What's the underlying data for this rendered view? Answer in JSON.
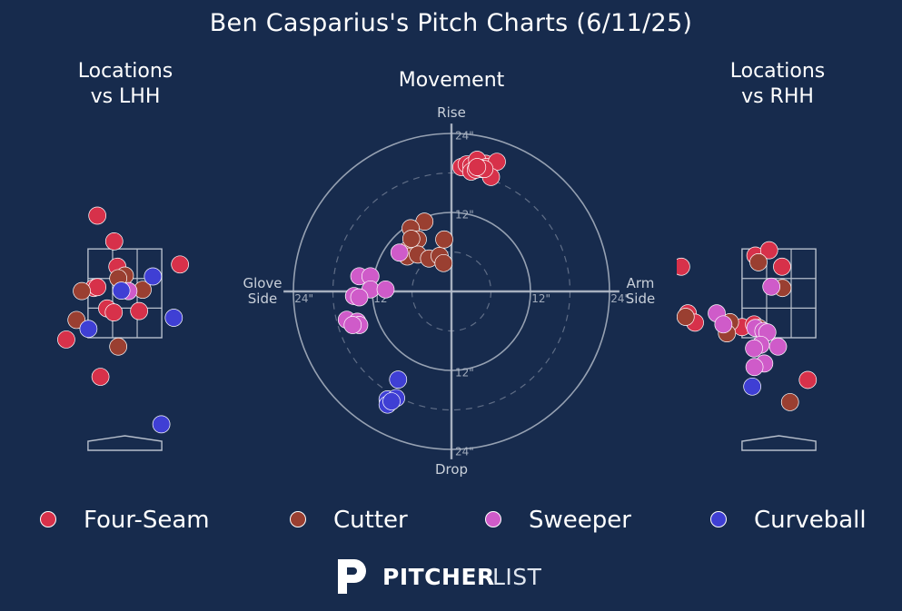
{
  "title": "Ben Casparius's Pitch Charts (6/11/25)",
  "panel_titles": {
    "lhh": "Locations\nvs LHH",
    "movement": "Movement",
    "rhh": "Locations\nvs RHH"
  },
  "colors": {
    "background": "#172b4d",
    "Four-Seam": "#d7314a",
    "Cutter": "#9a3f31",
    "Sweeper": "#cf5bc9",
    "Curveball": "#3f3fd4",
    "axis": "#b7bfcc"
  },
  "legend": [
    "Four-Seam",
    "Cutter",
    "Sweeper",
    "Curveball"
  ],
  "movement_labels": {
    "top": "Rise",
    "bottom": "Drop",
    "left": "Glove\nSide",
    "right": "Arm\nSide"
  },
  "ring_labels": [
    "12\"",
    "24\""
  ],
  "logo": {
    "icon": "pitcherlist-p-icon",
    "bold": "PITCHER",
    "light": "LIST"
  },
  "chart_data": [
    {
      "type": "scatter",
      "title": "Locations\nvs LHH",
      "xlabel": "",
      "ylabel": "",
      "units": "feet (horizontal, catcher view; vertical height)",
      "xlim": [
        -2.3,
        2.3
      ],
      "ylim": [
        -0.8,
        5.0
      ],
      "strike_zone": {
        "x": [
          -0.83,
          0.83
        ],
        "y": [
          1.5,
          3.5
        ]
      },
      "points": [
        {
          "pitch": "Four-Seam",
          "x": -0.62,
          "y": 4.25
        },
        {
          "pitch": "Four-Seam",
          "x": -0.24,
          "y": 3.67
        },
        {
          "pitch": "Four-Seam",
          "x": 1.24,
          "y": 3.15
        },
        {
          "pitch": "Four-Seam",
          "x": -0.17,
          "y": 3.1
        },
        {
          "pitch": "Four-Seam",
          "x": -0.7,
          "y": 2.62
        },
        {
          "pitch": "Four-Seam",
          "x": -0.62,
          "y": 2.64
        },
        {
          "pitch": "Four-Seam",
          "x": -0.4,
          "y": 2.16
        },
        {
          "pitch": "Four-Seam",
          "x": -0.25,
          "y": 2.07
        },
        {
          "pitch": "Four-Seam",
          "x": 0.32,
          "y": 2.1
        },
        {
          "pitch": "Four-Seam",
          "x": -1.32,
          "y": 1.46
        },
        {
          "pitch": "Four-Seam",
          "x": -0.55,
          "y": 0.62
        },
        {
          "pitch": "Cutter",
          "x": 0.0,
          "y": 2.9
        },
        {
          "pitch": "Cutter",
          "x": -0.15,
          "y": 2.84
        },
        {
          "pitch": "Cutter",
          "x": -0.97,
          "y": 2.55
        },
        {
          "pitch": "Cutter",
          "x": 0.4,
          "y": 2.58
        },
        {
          "pitch": "Cutter",
          "x": -1.09,
          "y": 1.9
        },
        {
          "pitch": "Cutter",
          "x": -0.15,
          "y": 1.3
        },
        {
          "pitch": "Sweeper",
          "x": 0.08,
          "y": 2.55
        },
        {
          "pitch": "Curveball",
          "x": 0.63,
          "y": 2.88
        },
        {
          "pitch": "Curveball",
          "x": -0.08,
          "y": 2.56
        },
        {
          "pitch": "Curveball",
          "x": 1.1,
          "y": 1.95
        },
        {
          "pitch": "Curveball",
          "x": -0.82,
          "y": 1.7
        },
        {
          "pitch": "Curveball",
          "x": 0.82,
          "y": -0.45
        }
      ]
    },
    {
      "type": "scatter",
      "title": "Movement",
      "xlabel": "",
      "ylabel": "",
      "units": "inches",
      "xlim": [
        -32,
        32
      ],
      "ylim": [
        -32,
        32
      ],
      "rings": [
        6,
        12,
        18,
        24
      ],
      "points": [
        {
          "pitch": "Four-Seam",
          "x": 1.5,
          "y": 18.9
        },
        {
          "pitch": "Four-Seam",
          "x": 2.3,
          "y": 19.3
        },
        {
          "pitch": "Four-Seam",
          "x": 3.0,
          "y": 19.1
        },
        {
          "pitch": "Four-Seam",
          "x": 3.8,
          "y": 19.0
        },
        {
          "pitch": "Four-Seam",
          "x": 4.6,
          "y": 18.6
        },
        {
          "pitch": "Four-Seam",
          "x": 5.2,
          "y": 19.4
        },
        {
          "pitch": "Four-Seam",
          "x": 3.9,
          "y": 20.0
        },
        {
          "pitch": "Four-Seam",
          "x": 5.3,
          "y": 18.9
        },
        {
          "pitch": "Four-Seam",
          "x": 6.9,
          "y": 19.7
        },
        {
          "pitch": "Four-Seam",
          "x": 3.0,
          "y": 18.2
        },
        {
          "pitch": "Four-Seam",
          "x": 6.0,
          "y": 17.4
        },
        {
          "pitch": "Four-Seam",
          "x": 3.7,
          "y": 18.5
        },
        {
          "pitch": "Four-Seam",
          "x": 4.2,
          "y": 18.8
        },
        {
          "pitch": "Four-Seam",
          "x": 5.0,
          "y": 18.6
        },
        {
          "pitch": "Four-Seam",
          "x": 3.9,
          "y": 18.9
        },
        {
          "pitch": "Cutter",
          "x": -4.1,
          "y": 10.6
        },
        {
          "pitch": "Cutter",
          "x": -6.2,
          "y": 9.6
        },
        {
          "pitch": "Cutter",
          "x": -5.1,
          "y": 7.9
        },
        {
          "pitch": "Cutter",
          "x": -6.8,
          "y": 6.2
        },
        {
          "pitch": "Cutter",
          "x": -6.7,
          "y": 5.3
        },
        {
          "pitch": "Cutter",
          "x": -5.1,
          "y": 5.6
        },
        {
          "pitch": "Cutter",
          "x": -3.4,
          "y": 5.0
        },
        {
          "pitch": "Cutter",
          "x": -1.8,
          "y": 5.4
        },
        {
          "pitch": "Cutter",
          "x": -1.2,
          "y": 4.3
        },
        {
          "pitch": "Cutter",
          "x": -1.1,
          "y": 7.9
        },
        {
          "pitch": "Cutter",
          "x": -6.1,
          "y": 8.0
        },
        {
          "pitch": "Sweeper",
          "x": -7.9,
          "y": 5.9
        },
        {
          "pitch": "Sweeper",
          "x": -14.0,
          "y": 2.3
        },
        {
          "pitch": "Sweeper",
          "x": -12.3,
          "y": 2.3
        },
        {
          "pitch": "Sweeper",
          "x": -12.3,
          "y": 0.3
        },
        {
          "pitch": "Sweeper",
          "x": -10.0,
          "y": 0.3
        },
        {
          "pitch": "Sweeper",
          "x": -14.8,
          "y": -0.7
        },
        {
          "pitch": "Sweeper",
          "x": -14.0,
          "y": -0.9
        },
        {
          "pitch": "Sweeper",
          "x": -15.9,
          "y": -4.3
        },
        {
          "pitch": "Sweeper",
          "x": -14.3,
          "y": -4.6
        },
        {
          "pitch": "Sweeper",
          "x": -14.0,
          "y": -5.1
        },
        {
          "pitch": "Sweeper",
          "x": -15.0,
          "y": -5.1
        },
        {
          "pitch": "Curveball",
          "x": -8.1,
          "y": -13.4
        },
        {
          "pitch": "Curveball",
          "x": -9.7,
          "y": -16.4
        },
        {
          "pitch": "Curveball",
          "x": -8.4,
          "y": -16.2
        },
        {
          "pitch": "Curveball",
          "x": -9.7,
          "y": -17.2
        },
        {
          "pitch": "Curveball",
          "x": -9.1,
          "y": -16.7
        }
      ]
    },
    {
      "type": "scatter",
      "title": "Locations\nvs RHH",
      "xlabel": "",
      "ylabel": "",
      "units": "feet (horizontal, catcher view; vertical height)",
      "xlim": [
        -2.3,
        2.3
      ],
      "ylim": [
        -0.8,
        5.0
      ],
      "strike_zone": {
        "x": [
          -0.83,
          0.83
        ],
        "y": [
          1.5,
          3.5
        ]
      },
      "points": [
        {
          "pitch": "Four-Seam",
          "x": -0.53,
          "y": 3.35
        },
        {
          "pitch": "Four-Seam",
          "x": -0.22,
          "y": 3.47
        },
        {
          "pitch": "Four-Seam",
          "x": 0.07,
          "y": 3.1
        },
        {
          "pitch": "Four-Seam",
          "x": -2.2,
          "y": 3.1
        },
        {
          "pitch": "Four-Seam",
          "x": -2.05,
          "y": 2.05
        },
        {
          "pitch": "Four-Seam",
          "x": -1.89,
          "y": 1.84
        },
        {
          "pitch": "Four-Seam",
          "x": -0.83,
          "y": 1.74
        },
        {
          "pitch": "Four-Seam",
          "x": -0.56,
          "y": 1.8
        },
        {
          "pitch": "Four-Seam",
          "x": 0.65,
          "y": 0.55
        },
        {
          "pitch": "Cutter",
          "x": -0.46,
          "y": 3.2
        },
        {
          "pitch": "Cutter",
          "x": 0.08,
          "y": 2.62
        },
        {
          "pitch": "Cutter",
          "x": -2.1,
          "y": 1.97
        },
        {
          "pitch": "Cutter",
          "x": -1.1,
          "y": 1.85
        },
        {
          "pitch": "Cutter",
          "x": -0.45,
          "y": 1.72
        },
        {
          "pitch": "Cutter",
          "x": -0.32,
          "y": 1.6
        },
        {
          "pitch": "Cutter",
          "x": -1.17,
          "y": 1.6
        },
        {
          "pitch": "Cutter",
          "x": 0.25,
          "y": 0.05
        },
        {
          "pitch": "Sweeper",
          "x": -0.17,
          "y": 2.65
        },
        {
          "pitch": "Sweeper",
          "x": -1.4,
          "y": 2.05
        },
        {
          "pitch": "Sweeper",
          "x": -1.25,
          "y": 1.8
        },
        {
          "pitch": "Sweeper",
          "x": -0.53,
          "y": 1.72
        },
        {
          "pitch": "Sweeper",
          "x": -0.35,
          "y": 1.65
        },
        {
          "pitch": "Sweeper",
          "x": -0.26,
          "y": 1.62
        },
        {
          "pitch": "Sweeper",
          "x": -0.41,
          "y": 1.34
        },
        {
          "pitch": "Sweeper",
          "x": -0.56,
          "y": 1.26
        },
        {
          "pitch": "Sweeper",
          "x": -0.02,
          "y": 1.3
        },
        {
          "pitch": "Sweeper",
          "x": -0.33,
          "y": 0.92
        },
        {
          "pitch": "Sweeper",
          "x": -0.55,
          "y": 0.84
        },
        {
          "pitch": "Curveball",
          "x": -0.6,
          "y": 0.4
        }
      ]
    }
  ]
}
